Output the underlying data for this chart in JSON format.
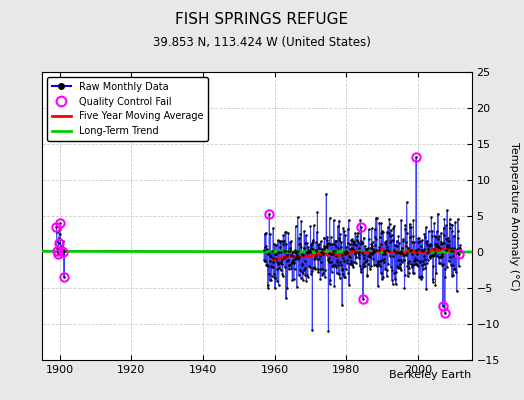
{
  "title": "FISH SPRINGS REFUGE",
  "subtitle": "39.853 N, 113.424 W (United States)",
  "ylabel": "Temperature Anomaly (°C)",
  "attribution": "Berkeley Earth",
  "ylim": [
    -15,
    25
  ],
  "xlim": [
    1895,
    2015
  ],
  "yticks": [
    -15,
    -10,
    -5,
    0,
    5,
    10,
    15,
    20,
    25
  ],
  "xticks": [
    1900,
    1920,
    1940,
    1960,
    1980,
    2000
  ],
  "outer_bg": "#e8e8e8",
  "plot_bg": "#ffffff",
  "stem_color": "#aabbff",
  "raw_line_color": "#0000ff",
  "raw_marker_color": "#000000",
  "qc_color": "#ff00ff",
  "moving_avg_color": "#ff0000",
  "trend_color": "#00cc00",
  "grid_color": "#cccccc",
  "seed": 42,
  "early_start": 1899,
  "main_start": 1957,
  "main_end": 2012
}
